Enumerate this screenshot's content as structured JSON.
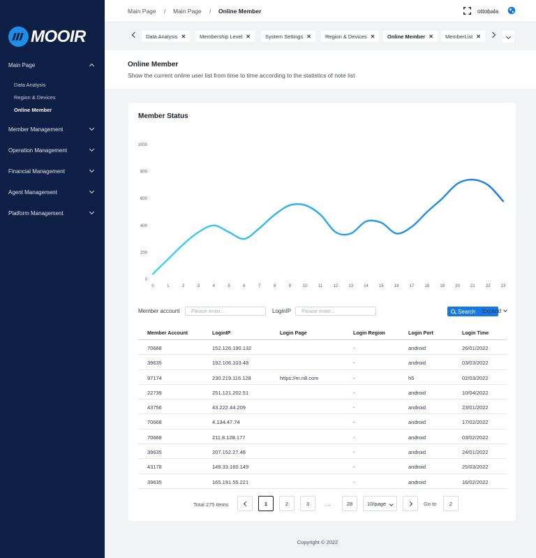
{
  "brand": {
    "name": "MOOIR",
    "accent": "#1677e6",
    "sidebar_bg": "#0e1f45"
  },
  "sidebar": {
    "groups": [
      {
        "label": "Main Page",
        "expanded": true,
        "items": [
          "Data Analysis",
          "Region & Devices",
          "Online Member"
        ],
        "active_item": "Online Member"
      },
      {
        "label": "Member Management",
        "expanded": false
      },
      {
        "label": "Operation Management",
        "expanded": false
      },
      {
        "label": "Financial Management",
        "expanded": false
      },
      {
        "label": "Agent Management",
        "expanded": false
      },
      {
        "label": "Platform Management",
        "expanded": false
      }
    ]
  },
  "header": {
    "breadcrumb": [
      "Main Page",
      "Main Page",
      "Online Member"
    ],
    "separator": "/",
    "user": "ottobala",
    "icons": [
      "fullscreen-icon",
      "globe-icon"
    ]
  },
  "tabs": {
    "items": [
      {
        "label": "Data Analysis",
        "active": false
      },
      {
        "label": "Membership Level",
        "active": false
      },
      {
        "label": "System Settings",
        "active": false
      },
      {
        "label": "Region & Devices",
        "active": false
      },
      {
        "label": "Online Member",
        "active": true
      },
      {
        "label": "MemberList",
        "active": false
      }
    ],
    "close_glyph": "✕"
  },
  "page": {
    "title": "Online Member",
    "description": "Show the current online user list from time to time according to the statistics of note list"
  },
  "card": {
    "title": "Member Status"
  },
  "chart_data": {
    "type": "line",
    "x": [
      0,
      1,
      2,
      3,
      4,
      5,
      6,
      7,
      8,
      9,
      10,
      11,
      12,
      13,
      14,
      15,
      16,
      17,
      18,
      19,
      20,
      21,
      22,
      23
    ],
    "series": [
      {
        "values": [
          40,
          150,
          260,
          350,
          400,
          350,
          300,
          380,
          480,
          550,
          550,
          480,
          350,
          340,
          430,
          420,
          340,
          390,
          500,
          600,
          710,
          740,
          700,
          580
        ]
      }
    ],
    "xticks": [
      "0",
      "1",
      "2",
      "3",
      "4",
      "5",
      "6",
      "7",
      "8",
      "9",
      "10",
      "11",
      "12",
      "13",
      "14",
      "15",
      "16",
      "17",
      "18",
      "19",
      "20",
      "21",
      "22",
      "23"
    ],
    "yticks": [
      "0",
      "200",
      "400",
      "600",
      "800",
      "1000"
    ],
    "ylim": [
      0,
      1000
    ],
    "xlim": [
      0,
      23
    ],
    "grid": false,
    "line_gradient": [
      "#3cd4f5",
      "#1677e6"
    ]
  },
  "filters": {
    "member_account_label": "Member account",
    "member_account_placeholder": "Please enter...",
    "login_ip_label": "LoginIP",
    "login_ip_placeholder": "Please enter...",
    "search_label": "Search",
    "expand_label": "Expand"
  },
  "table": {
    "columns": [
      "Member Account",
      "LoginIP",
      "Login Page",
      "Login Region",
      "Login Port",
      "Login Time"
    ],
    "rows": [
      [
        "70668",
        "152.126.190.132",
        "",
        "-",
        "android",
        "26/01/2022"
      ],
      [
        "39635",
        "192.106.103.48",
        "",
        "-",
        "android",
        "03/03/2022"
      ],
      [
        "97174",
        "230.219.116.128",
        "https://m.n8.com",
        "-",
        "h5",
        "02/03/2022"
      ],
      [
        "22739",
        "251.121.202.51",
        "",
        "-",
        "android",
        "10/04/2022"
      ],
      [
        "43756",
        "43.222.44.209",
        "",
        "-",
        "android",
        "23/01/2022"
      ],
      [
        "70668",
        "4.134.47.74",
        "",
        "-",
        "android",
        "17/02/2022"
      ],
      [
        "70668",
        "211.8.128.177",
        "",
        "-",
        "android",
        "03/02/2022"
      ],
      [
        "39635",
        "207.152.27.48",
        "",
        "-",
        "android",
        "24/01/2022"
      ],
      [
        "43178",
        "149.33.160.149",
        "",
        "-",
        "android",
        "25/03/2022"
      ],
      [
        "39635",
        "165.191.55.221",
        "",
        "-",
        "android",
        "16/02/2022"
      ]
    ]
  },
  "pagination": {
    "total_label": "Total 275 items",
    "pages": [
      "1",
      "2",
      "3"
    ],
    "ellipsis": "...",
    "last_page": "28",
    "current": "1",
    "page_size": "10/page",
    "goto_label": "Go to",
    "goto_value": "2"
  },
  "footer": {
    "text": "Copyright © 2022"
  }
}
